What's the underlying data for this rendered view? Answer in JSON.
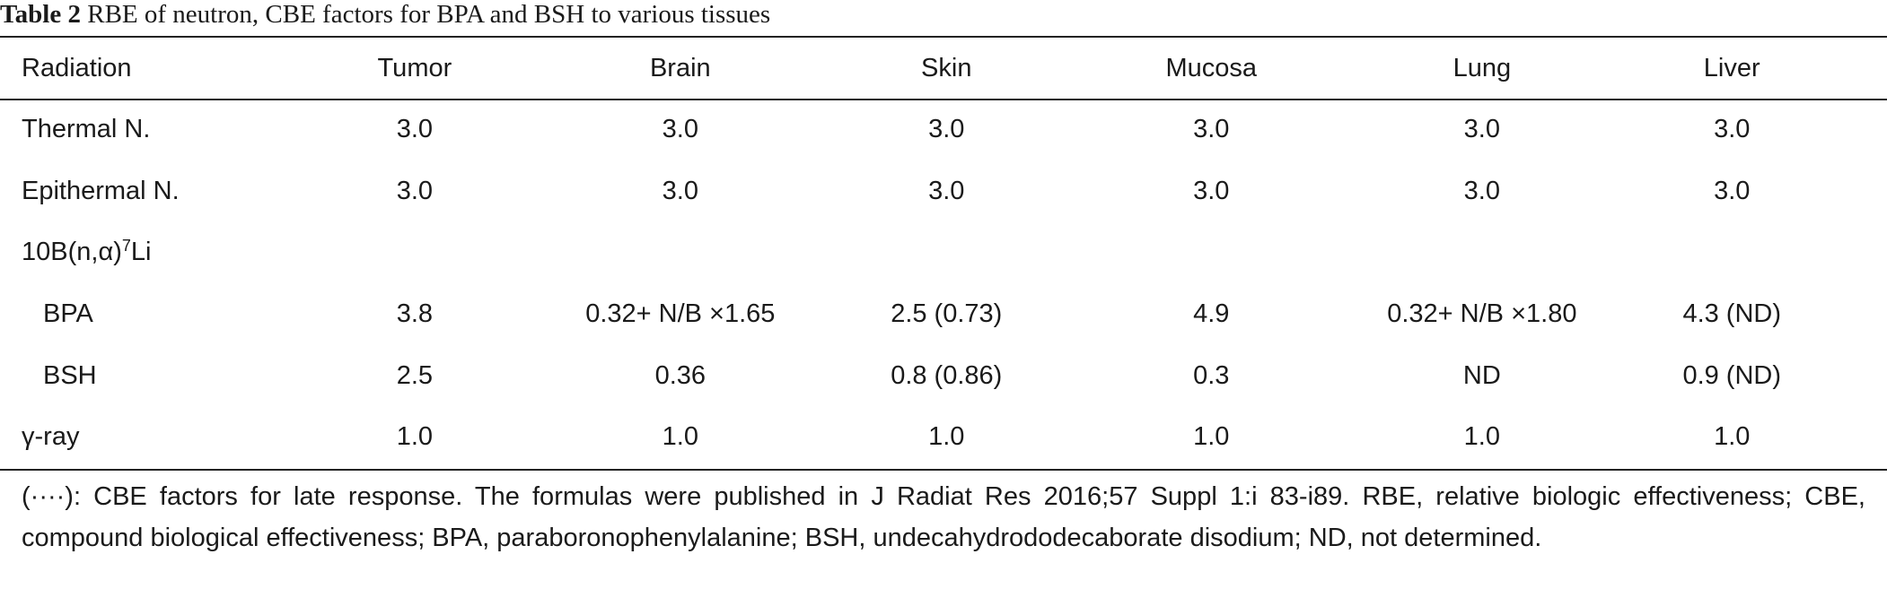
{
  "caption": {
    "label": "Table 2",
    "text": "RBE of neutron, CBE factors for BPA and BSH to various tissues"
  },
  "table": {
    "headers": [
      "Radiation",
      "Tumor",
      "Brain",
      "Skin",
      "Mucosa",
      "Lung",
      "Liver"
    ],
    "rows": [
      {
        "radiation": "Thermal N.",
        "values": [
          "3.0",
          "3.0",
          "3.0",
          "3.0",
          "3.0",
          "3.0"
        ]
      },
      {
        "radiation": "Epithermal N.",
        "values": [
          "3.0",
          "3.0",
          "3.0",
          "3.0",
          "3.0",
          "3.0"
        ]
      },
      {
        "radiation_base": "10B(n,α)",
        "radiation_sup": "7",
        "radiation_tail": "Li",
        "values": [
          "",
          "",
          "",
          "",
          "",
          ""
        ]
      },
      {
        "radiation": "BPA",
        "values": [
          "3.8",
          "0.32+ N/B ×1.65",
          "2.5 (0.73)",
          "4.9",
          "0.32+ N/B ×1.80",
          "4.3 (ND)"
        ]
      },
      {
        "radiation": "BSH",
        "values": [
          "2.5",
          "0.36",
          "0.8 (0.86)",
          "0.3",
          "ND",
          "0.9 (ND)"
        ]
      },
      {
        "radiation": "γ-ray",
        "values": [
          "1.0",
          "1.0",
          "1.0",
          "1.0",
          "1.0",
          "1.0"
        ]
      }
    ]
  },
  "footnote": "(····): CBE factors for late response. The formulas were published in J Radiat Res 2016;57 Suppl 1:i 83-i89. RBE, relative biologic effectiveness; CBE, compound biological effectiveness; BPA, paraboronophenylalanine; BSH, undecahydrododecaborate disodium; ND, not determined."
}
